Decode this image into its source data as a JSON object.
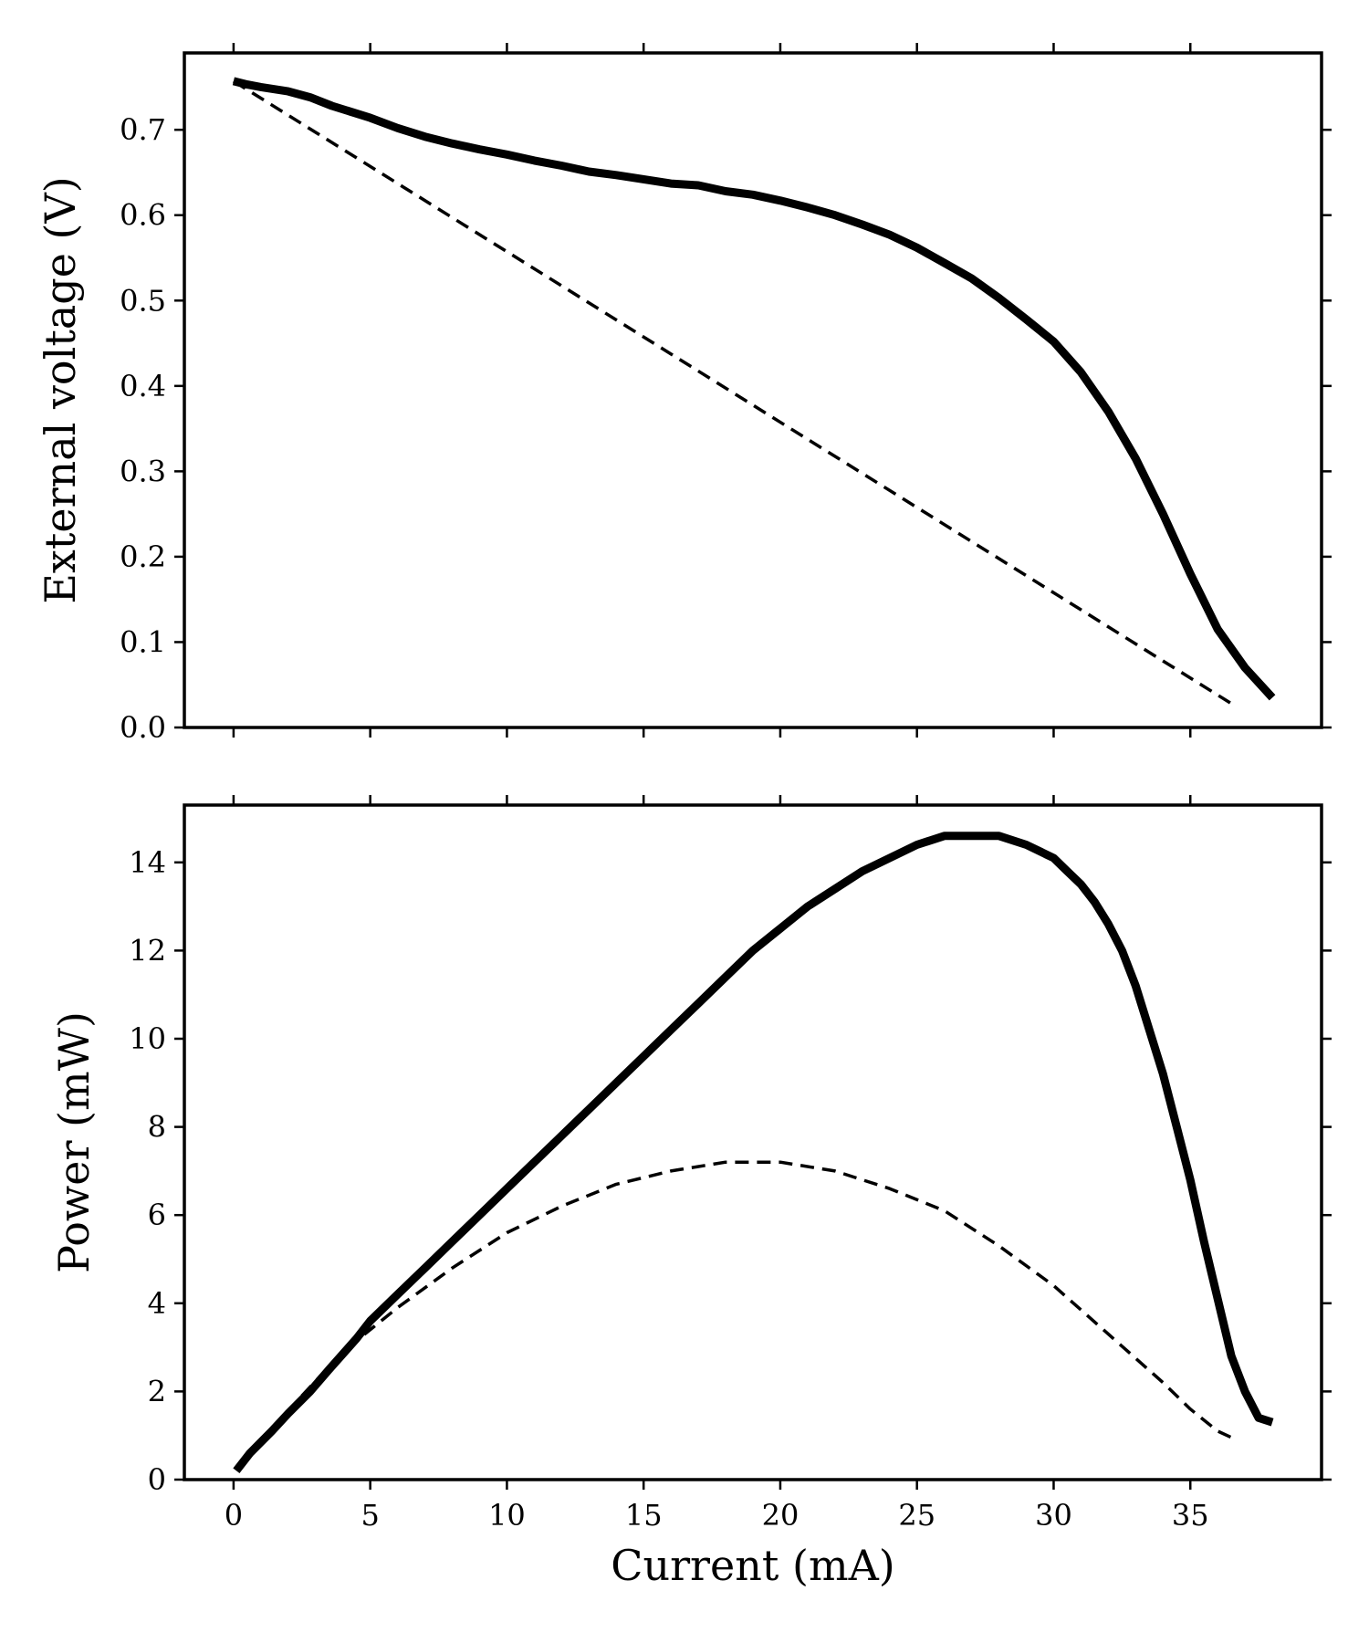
{
  "chart_data": [
    {
      "type": "line",
      "panel": "top",
      "title": "",
      "xlabel": "",
      "ylabel": "External voltage (V)",
      "xlim": [
        -1.8,
        39.8
      ],
      "ylim": [
        0.0,
        0.79
      ],
      "xticks": [
        0,
        5,
        10,
        15,
        20,
        25,
        30,
        35
      ],
      "yticks": [
        0.0,
        0.1,
        0.2,
        0.3,
        0.4,
        0.5,
        0.6,
        0.7
      ],
      "ytick_labels": [
        "0.0",
        "0.1",
        "0.2",
        "0.3",
        "0.4",
        "0.5",
        "0.6",
        "0.7"
      ],
      "grid": false,
      "series": [
        {
          "name": "solid",
          "style": "solid",
          "x": [
            0,
            0.5,
            1,
            2,
            2.8,
            3.6,
            5,
            6,
            7,
            8,
            9,
            10,
            11,
            12,
            13,
            14,
            15,
            16,
            17,
            18,
            19,
            20,
            21,
            22,
            23,
            24,
            25,
            26,
            27,
            28,
            29,
            30,
            31,
            32,
            33,
            34,
            35,
            36,
            37,
            38
          ],
          "y": [
            0.757,
            0.753,
            0.75,
            0.745,
            0.738,
            0.728,
            0.714,
            0.702,
            0.692,
            0.684,
            0.677,
            0.671,
            0.664,
            0.658,
            0.651,
            0.647,
            0.642,
            0.637,
            0.635,
            0.628,
            0.624,
            0.617,
            0.609,
            0.6,
            0.589,
            0.577,
            0.562,
            0.544,
            0.526,
            0.503,
            0.478,
            0.452,
            0.416,
            0.37,
            0.315,
            0.25,
            0.18,
            0.115,
            0.07,
            0.035
          ]
        },
        {
          "name": "dashed",
          "style": "dashed",
          "x": [
            0,
            36.7
          ],
          "y": [
            0.757,
            0.024
          ]
        }
      ]
    },
    {
      "type": "line",
      "panel": "bottom",
      "title": "",
      "xlabel": "Current (mA)",
      "ylabel": "Power (mW)",
      "xlim": [
        -1.8,
        39.8
      ],
      "ylim": [
        0,
        15.3
      ],
      "xticks": [
        0,
        5,
        10,
        15,
        20,
        25,
        30,
        35
      ],
      "xtick_labels": [
        "0",
        "5",
        "10",
        "15",
        "20",
        "25",
        "30",
        "35"
      ],
      "yticks": [
        0,
        2,
        4,
        6,
        8,
        10,
        12,
        14
      ],
      "ytick_labels": [
        "0",
        "2",
        "4",
        "6",
        "8",
        "10",
        "12",
        "14"
      ],
      "grid": false,
      "series": [
        {
          "name": "solid",
          "style": "solid",
          "x": [
            0.1,
            0.6,
            1.4,
            2,
            2.8,
            3.5,
            4.5,
            5,
            6,
            7,
            8,
            9,
            10,
            11,
            12,
            13,
            14,
            15,
            16,
            17,
            18,
            19,
            20,
            21,
            22,
            23,
            24,
            25,
            26,
            27,
            28,
            29,
            30,
            30.5,
            31,
            31.5,
            32,
            32.5,
            33,
            33.5,
            34,
            34.5,
            35,
            35.5,
            36,
            36.5,
            37,
            37.5,
            38
          ],
          "y": [
            0.2,
            0.6,
            1.1,
            1.5,
            2.0,
            2.5,
            3.2,
            3.6,
            4.2,
            4.8,
            5.4,
            6.0,
            6.6,
            7.2,
            7.8,
            8.4,
            9.0,
            9.6,
            10.2,
            10.8,
            11.4,
            12.0,
            12.5,
            13.0,
            13.4,
            13.8,
            14.1,
            14.4,
            14.6,
            14.6,
            14.6,
            14.4,
            14.1,
            13.8,
            13.5,
            13.1,
            12.6,
            12.0,
            11.2,
            10.2,
            9.2,
            8.0,
            6.8,
            5.4,
            4.1,
            2.8,
            2.0,
            1.4,
            1.3
          ]
        },
        {
          "name": "dashed",
          "style": "dashed",
          "x": [
            2.5,
            4,
            6,
            8,
            10,
            12,
            14,
            16,
            18,
            19,
            20,
            22,
            24,
            26,
            28,
            30,
            32,
            34,
            35,
            36,
            36.7
          ],
          "y": [
            1.9,
            2.9,
            3.9,
            4.8,
            5.6,
            6.2,
            6.7,
            7.0,
            7.2,
            7.2,
            7.2,
            7.0,
            6.6,
            6.1,
            5.3,
            4.4,
            3.3,
            2.2,
            1.6,
            1.1,
            0.9
          ]
        }
      ]
    }
  ]
}
